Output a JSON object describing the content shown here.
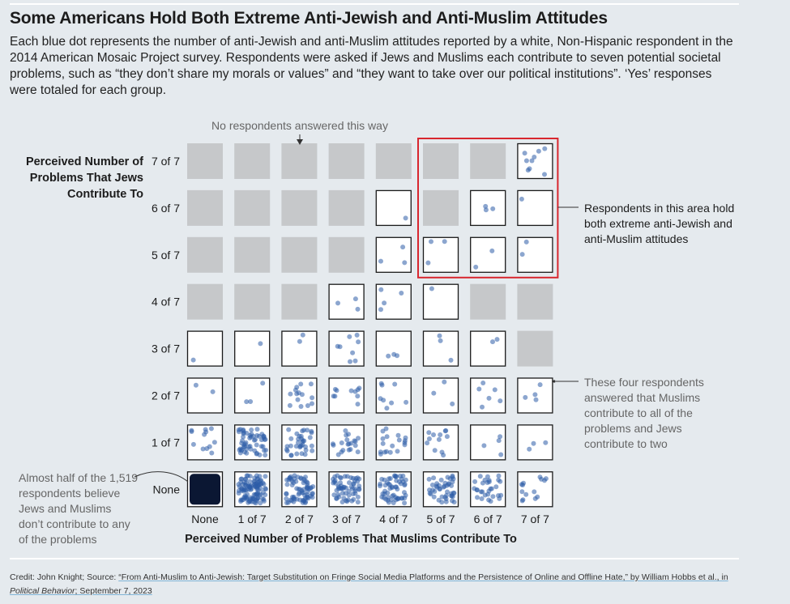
{
  "header": {
    "title": "Some Americans Hold Both Extreme Anti-Jewish and Anti-Muslim Attitudes",
    "subtitle": "Each blue dot represents the number of anti-Jewish and anti-Muslim attitudes reported by a white, Non-Hispanic respondent in the 2014 American Mosaic Project survey. Respondents were asked if Jews and Muslims each contribute to seven potential societal problems, such as “they don’t share my morals or values” and “they want to take over our political institutions”. ‘Yes’ responses were totaled for each group."
  },
  "colors": {
    "background": "#e5eaee",
    "empty_cell": "#c6c8ca",
    "dot": "#2d5da8",
    "highlight": "#d8262e"
  },
  "chart_data": {
    "type": "scatter",
    "x_categories": [
      "None",
      "1 of 7",
      "2 of 7",
      "3 of 7",
      "4 of 7",
      "5 of 7",
      "6 of 7",
      "7 of 7"
    ],
    "y_categories": [
      "None",
      "1 of 7",
      "2 of 7",
      "3 of 7",
      "4 of 7",
      "5 of 7",
      "6 of 7",
      "7 of 7"
    ],
    "xlabel": "Perceived Number of Problems That Muslims Contribute To",
    "ylabel": "Perceived Number of Problems That Jews Contribute To",
    "counts_note": "respondent counts per cell estimated from dot density; rows listed from None (index 0) to 7 of 7 (index 7), columns None to 7 of 7",
    "counts": [
      [
        700,
        110,
        70,
        60,
        55,
        45,
        30,
        14
      ],
      [
        12,
        55,
        35,
        20,
        18,
        12,
        4,
        3
      ],
      [
        2,
        3,
        14,
        10,
        8,
        3,
        6,
        4
      ],
      [
        1,
        1,
        2,
        8,
        3,
        3,
        2,
        0
      ],
      [
        0,
        0,
        0,
        3,
        4,
        1,
        0,
        0
      ],
      [
        0,
        0,
        0,
        0,
        3,
        3,
        2,
        2
      ],
      [
        0,
        0,
        0,
        0,
        1,
        0,
        3,
        1
      ],
      [
        0,
        0,
        0,
        0,
        0,
        0,
        0,
        9
      ]
    ],
    "empty_cell_label": "No respondents answered this way"
  },
  "annotations": {
    "no_respondents": "No respondents answered this way",
    "highlight": [
      "Respondents in this area hold",
      "both extreme anti-Jewish and",
      "anti-Muslim attitudes"
    ],
    "four": [
      "These four respondents",
      "answered that Muslims",
      "contribute to all of the",
      "problems and Jews",
      "contribute to two"
    ],
    "half": [
      "Almost half of the 1,519",
      "respondents believe",
      "Jews and Muslims",
      "don’t contribute to any",
      "of the problems"
    ]
  },
  "y_title_lines": [
    "Perceived Number of",
    "Problems That Jews",
    "Contribute To"
  ],
  "footer": {
    "credit_prefix": "Credit: John Knight; Source: ",
    "credit_link": "“From Anti-Muslim to Anti-Jewish: Target Substitution on Fringe Social Media Platforms and the Persistence of Online and Offline Hate,” by William Hobbs et al., in ",
    "journal": "Political Behavior",
    "date": "; September 7, 2023"
  }
}
